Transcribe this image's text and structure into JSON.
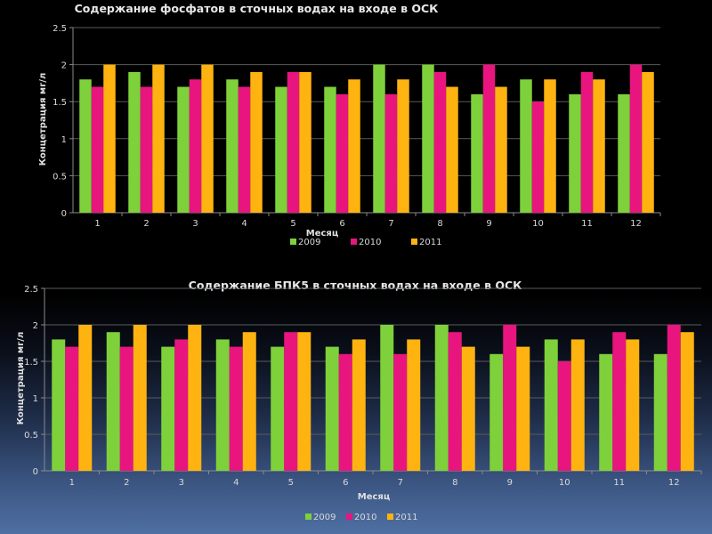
{
  "chart_data": [
    {
      "type": "bar",
      "title": "Содержание фосфатов в сточных водах на входе в ОСК",
      "xlabel": "Месяц",
      "ylabel": "Концетрация мг/л",
      "ylim": [
        0,
        2.5
      ],
      "yticks": [
        "0",
        "0.5",
        "1",
        "1.5",
        "2",
        "2.5"
      ],
      "grid": true,
      "legend_position": "bottom",
      "categories": [
        "1",
        "2",
        "3",
        "4",
        "5",
        "6",
        "7",
        "8",
        "9",
        "10",
        "11",
        "12"
      ],
      "series": [
        {
          "name": "2009",
          "color": "#7ed13a",
          "values": [
            1.8,
            1.9,
            1.7,
            1.8,
            1.7,
            1.7,
            2.0,
            2.0,
            1.6,
            1.8,
            1.6,
            1.6
          ]
        },
        {
          "name": "2010",
          "color": "#e8157f",
          "values": [
            1.7,
            1.7,
            1.8,
            1.7,
            1.9,
            1.6,
            1.6,
            1.9,
            2.0,
            1.5,
            1.9,
            2.0
          ]
        },
        {
          "name": "2011",
          "color": "#ffb310",
          "values": [
            2.0,
            2.0,
            2.0,
            1.9,
            1.9,
            1.8,
            1.8,
            1.7,
            1.7,
            1.8,
            1.8,
            1.9
          ]
        }
      ]
    },
    {
      "type": "bar",
      "title": "Содержание БПК5 в сточных водах на входе в ОСК",
      "xlabel": "Месяц",
      "ylabel": "Концетрация мг/л",
      "ylim": [
        0,
        2.5
      ],
      "yticks": [
        "0",
        "0.5",
        "1",
        "1.5",
        "2",
        "2.5"
      ],
      "grid": true,
      "legend_position": "bottom",
      "categories": [
        "1",
        "2",
        "3",
        "4",
        "5",
        "6",
        "7",
        "8",
        "9",
        "10",
        "11",
        "12"
      ],
      "series": [
        {
          "name": "2009",
          "color": "#7ed13a",
          "values": [
            1.8,
            1.9,
            1.7,
            1.8,
            1.7,
            1.7,
            2.0,
            2.0,
            1.6,
            1.8,
            1.6,
            1.6
          ]
        },
        {
          "name": "2010",
          "color": "#e8157f",
          "values": [
            1.7,
            1.7,
            1.8,
            1.7,
            1.9,
            1.6,
            1.6,
            1.9,
            2.0,
            1.5,
            1.9,
            2.0
          ]
        },
        {
          "name": "2011",
          "color": "#ffb310",
          "values": [
            2.0,
            2.0,
            2.0,
            1.9,
            1.9,
            1.8,
            1.8,
            1.7,
            1.7,
            1.8,
            1.8,
            1.9
          ]
        }
      ]
    }
  ]
}
